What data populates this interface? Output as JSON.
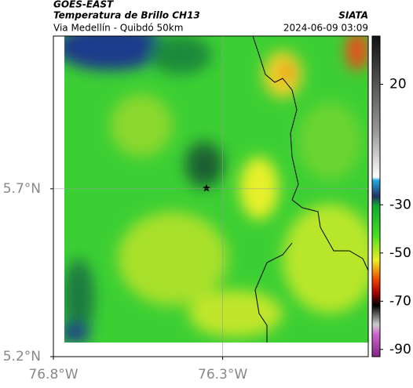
{
  "header": {
    "title": "GOES-EAST",
    "subtitle": "Temperatura de Brillo CH13",
    "region": "Via Medellín - Quibdó 50km",
    "source": "SIATA",
    "datetime": "2024-06-09 03:09"
  },
  "map": {
    "lon_range": [
      -76.8,
      -75.87
    ],
    "lat_range": [
      5.2,
      6.155
    ],
    "lon_ticks": [
      {
        "value": -76.8,
        "label": "76.8°W"
      },
      {
        "value": -76.3,
        "label": "76.3°W"
      }
    ],
    "lat_ticks": [
      {
        "value": 5.7,
        "label": "5.7°N"
      },
      {
        "value": 5.2,
        "label": "5.2°N"
      }
    ]
  },
  "colorbar": {
    "lim": [
      -93,
      40
    ],
    "ticks": [
      20,
      -30,
      -50,
      -70,
      -90
    ]
  }
}
